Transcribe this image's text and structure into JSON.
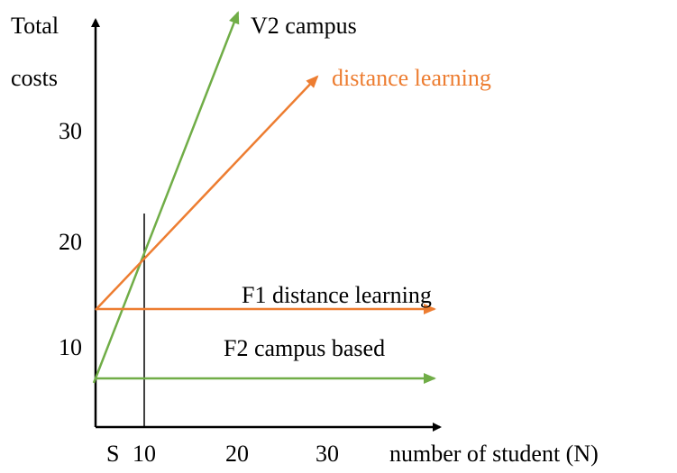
{
  "axes": {
    "y_label_line1": "Total",
    "y_label_line2": "costs",
    "x_label": "number of student  (N)"
  },
  "y_ticks": [
    "30",
    "20",
    "10"
  ],
  "x_ticks": [
    "S",
    "10",
    "20",
    "30"
  ],
  "lines": {
    "v2_campus": "V2 campus",
    "v1_distance": "distance learning",
    "f1": "F1  distance learning",
    "f2": "F2  campus based"
  }
}
